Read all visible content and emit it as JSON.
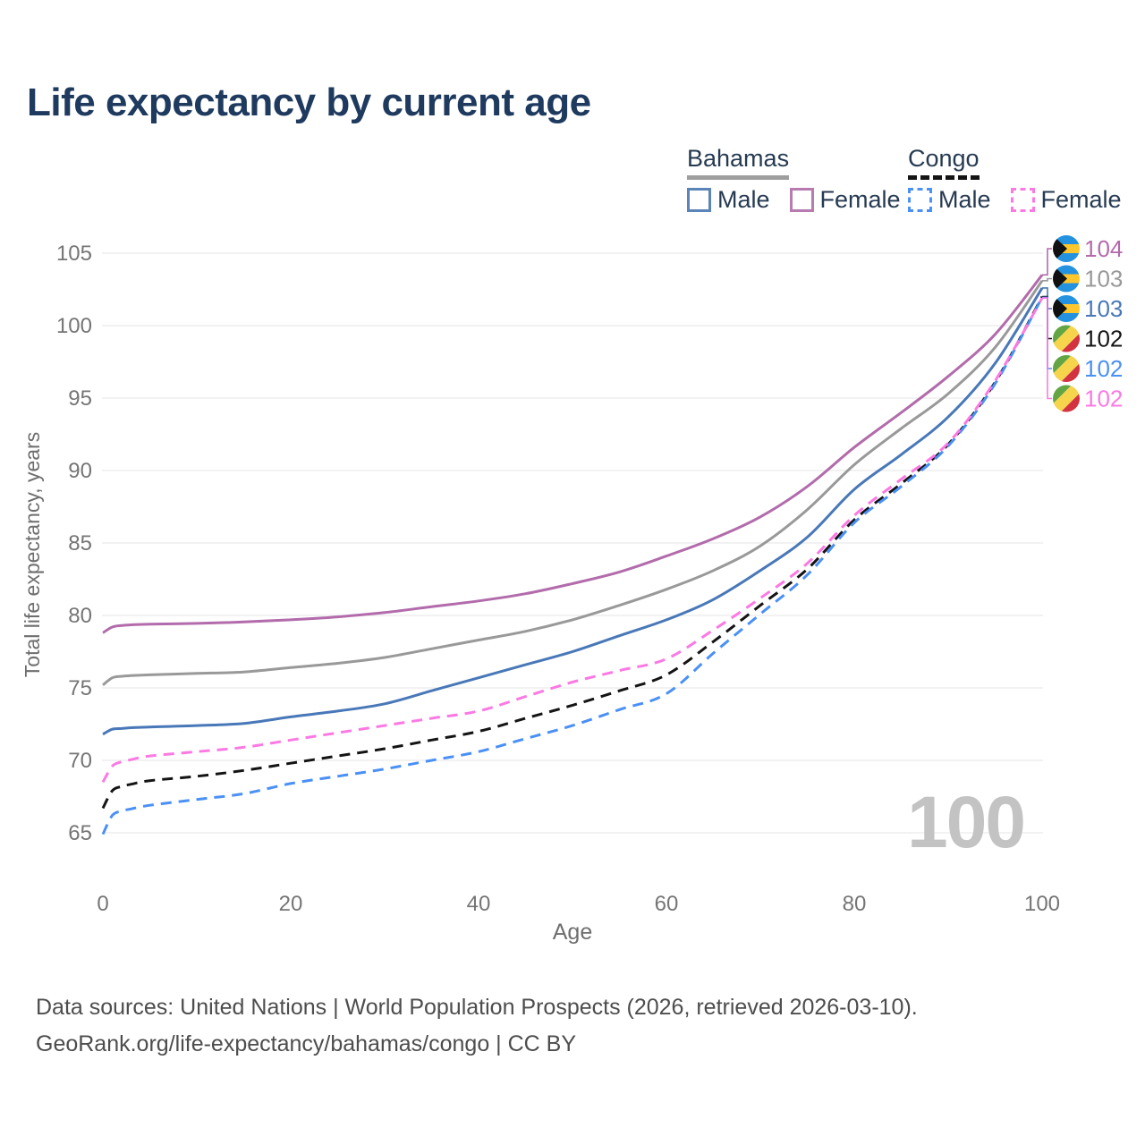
{
  "title": "Life expectancy by current age",
  "watermark": "100",
  "colors": {
    "title_text": "#1e3a5f",
    "axis_text": "#757575",
    "axis_title_text": "#6e6e6e",
    "grid": "#e9e9e9",
    "watermark_text": "#c3c3c3",
    "footer_text": "#4d4d4d",
    "legend_text": "#263a51"
  },
  "legend": {
    "groups": [
      {
        "country": "Bahamas",
        "line_style": "solid",
        "underline_color": "#9e9e9e",
        "items": [
          {
            "label": "Male",
            "color": "#5b84b8",
            "dashed": false
          },
          {
            "label": "Female",
            "color": "#b77bb0",
            "dashed": false
          }
        ]
      },
      {
        "country": "Congo",
        "line_style": "dashed",
        "underline_color": "#141414",
        "items": [
          {
            "label": "Male",
            "color": "#4a90f5",
            "dashed": true
          },
          {
            "label": "Female",
            "color": "#fb79e3",
            "dashed": true
          }
        ]
      }
    ]
  },
  "chart_data": {
    "type": "line",
    "title": "Life expectancy by current age",
    "xlabel": "Age",
    "ylabel": "Total life expectancy, years",
    "xlim": [
      0,
      100
    ],
    "ylim": [
      63,
      106.5
    ],
    "x_ticks": [
      0,
      20,
      40,
      60,
      80,
      100
    ],
    "y_ticks": [
      65,
      70,
      75,
      80,
      85,
      90,
      95,
      100,
      105
    ],
    "grid": "horizontal",
    "legend_position": "top-right",
    "ages": [
      0,
      1,
      2,
      3,
      5,
      10,
      15,
      20,
      25,
      30,
      35,
      40,
      45,
      50,
      55,
      60,
      65,
      70,
      75,
      80,
      85,
      90,
      95,
      100
    ],
    "series": [
      {
        "name": "Bahamas Female",
        "country": "Bahamas",
        "sex": "Female",
        "color": "#b26bab",
        "dashed": false,
        "flag": "bahamas",
        "end_label": "104",
        "values": [
          78.8,
          79.2,
          79.3,
          79.35,
          79.4,
          79.45,
          79.55,
          79.7,
          79.9,
          80.2,
          80.6,
          81.0,
          81.5,
          82.2,
          83.0,
          84.1,
          85.3,
          86.8,
          88.9,
          91.6,
          94.0,
          96.5,
          99.4,
          103.5
        ]
      },
      {
        "name": "Bahamas Both sexes",
        "country": "Bahamas",
        "sex": "Both",
        "color": "#999999",
        "dashed": false,
        "flag": "bahamas",
        "end_label": "103",
        "values": [
          75.2,
          75.7,
          75.8,
          75.85,
          75.9,
          76.0,
          76.1,
          76.4,
          76.7,
          77.1,
          77.7,
          78.3,
          78.9,
          79.7,
          80.7,
          81.8,
          83.1,
          84.8,
          87.3,
          90.4,
          92.9,
          95.3,
          98.5,
          103.1
        ]
      },
      {
        "name": "Bahamas Male",
        "country": "Bahamas",
        "sex": "Male",
        "color": "#4878b8",
        "dashed": false,
        "flag": "bahamas",
        "end_label": "103",
        "values": [
          71.8,
          72.15,
          72.2,
          72.25,
          72.3,
          72.4,
          72.55,
          73.0,
          73.4,
          73.9,
          74.8,
          75.7,
          76.6,
          77.5,
          78.6,
          79.7,
          81.1,
          83.1,
          85.4,
          88.7,
          91.1,
          93.7,
          97.4,
          102.6
        ]
      },
      {
        "name": "Congo Both sexes",
        "country": "Congo",
        "sex": "Both",
        "color": "#141414",
        "dashed": true,
        "flag": "congo",
        "end_label": "102",
        "values": [
          66.7,
          67.9,
          68.2,
          68.35,
          68.6,
          68.9,
          69.3,
          69.8,
          70.3,
          70.8,
          71.4,
          72.0,
          72.9,
          73.8,
          74.8,
          75.9,
          78.2,
          80.7,
          83.2,
          86.6,
          89.1,
          91.8,
          96.1,
          102.0
        ]
      },
      {
        "name": "Congo Male",
        "country": "Congo",
        "sex": "Male",
        "color": "#4a90f5",
        "dashed": true,
        "flag": "congo",
        "end_label": "102",
        "values": [
          64.9,
          66.2,
          66.5,
          66.65,
          66.9,
          67.3,
          67.7,
          68.4,
          68.9,
          69.4,
          70.0,
          70.6,
          71.5,
          72.4,
          73.5,
          74.6,
          77.4,
          80.1,
          82.8,
          86.4,
          88.9,
          91.7,
          96.0,
          101.95
        ]
      },
      {
        "name": "Congo Female",
        "country": "Congo",
        "sex": "Female",
        "color": "#fb79e3",
        "dashed": true,
        "flag": "congo",
        "end_label": "102",
        "values": [
          68.5,
          69.6,
          69.9,
          70.05,
          70.3,
          70.6,
          70.9,
          71.4,
          71.9,
          72.4,
          72.9,
          73.4,
          74.4,
          75.4,
          76.2,
          77.0,
          79.0,
          81.2,
          83.6,
          86.9,
          89.4,
          91.9,
          96.2,
          101.9
        ]
      }
    ]
  },
  "footer": {
    "line1": "Data sources: United Nations | World Population Prospects (2026, retrieved 2026-03-10).",
    "line2": "GeoRank.org/life-expectancy/bahamas/congo | CC BY"
  }
}
